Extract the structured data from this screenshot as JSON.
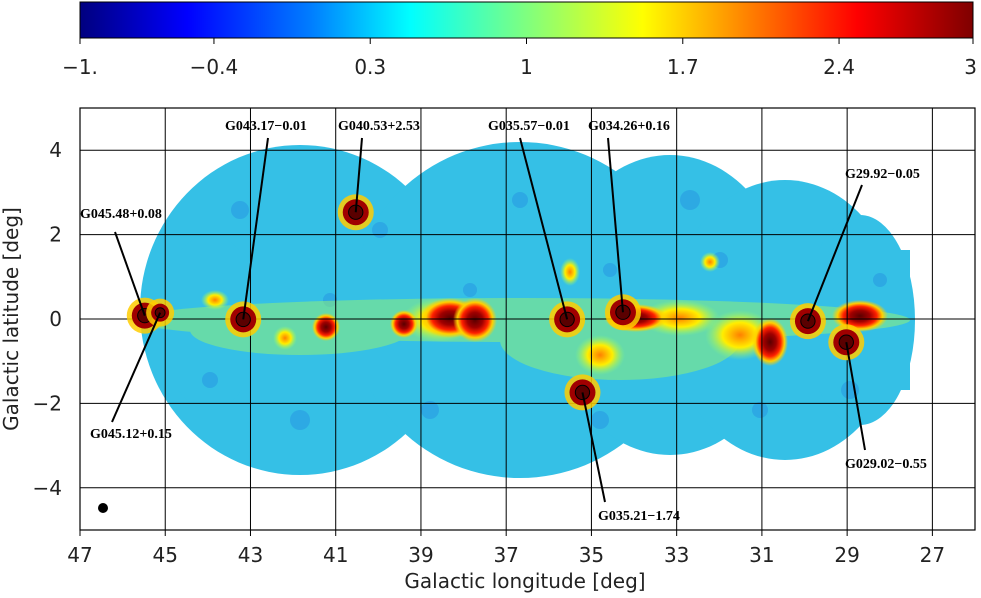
{
  "chart_data": {
    "type": "heatmap",
    "xlabel": "Galactic longitude [deg]",
    "ylabel": "Galactic latitude [deg]",
    "xlim": [
      47,
      26
    ],
    "ylim": [
      -5,
      5
    ],
    "x_ticks": [
      "47",
      "45",
      "43",
      "41",
      "39",
      "37",
      "35",
      "33",
      "31",
      "29",
      "27"
    ],
    "x_tick_values": [
      47,
      45,
      43,
      41,
      39,
      37,
      35,
      33,
      31,
      29,
      27
    ],
    "y_ticks": [
      "4",
      "2",
      "0",
      "−2",
      "−4"
    ],
    "y_tick_values": [
      4,
      2,
      0,
      -2,
      -4
    ],
    "grid": true,
    "colorbar": {
      "ticks": [
        "−1.",
        "−0.4",
        "0.3",
        "1",
        "1.7",
        "2.4",
        "3"
      ],
      "tick_values": [
        -1,
        -0.4,
        0.3,
        1,
        1.7,
        2.4,
        3
      ],
      "range": [
        -1,
        3
      ],
      "colormap": [
        "#00007f",
        "#0000ff",
        "#007fff",
        "#00ffff",
        "#7fff7f",
        "#ffff00",
        "#ff7f00",
        "#ff0000",
        "#7f0000"
      ]
    },
    "sources": [
      {
        "name": "G045.48+0.08",
        "l": 45.48,
        "b": 0.08
      },
      {
        "name": "G045.12+0.15",
        "l": 45.12,
        "b": 0.15
      },
      {
        "name": "G043.17−0.01",
        "l": 43.17,
        "b": -0.01
      },
      {
        "name": "G040.53+2.53",
        "l": 40.53,
        "b": 2.53
      },
      {
        "name": "G035.57−0.01",
        "l": 35.57,
        "b": -0.01
      },
      {
        "name": "G034.26+0.16",
        "l": 34.26,
        "b": 0.16
      },
      {
        "name": "G035.21−1.74",
        "l": 35.21,
        "b": -1.74
      },
      {
        "name": "G29.92−0.05",
        "l": 29.92,
        "b": -0.05
      },
      {
        "name": "G029.02−0.55",
        "l": 29.02,
        "b": -0.55
      }
    ]
  }
}
